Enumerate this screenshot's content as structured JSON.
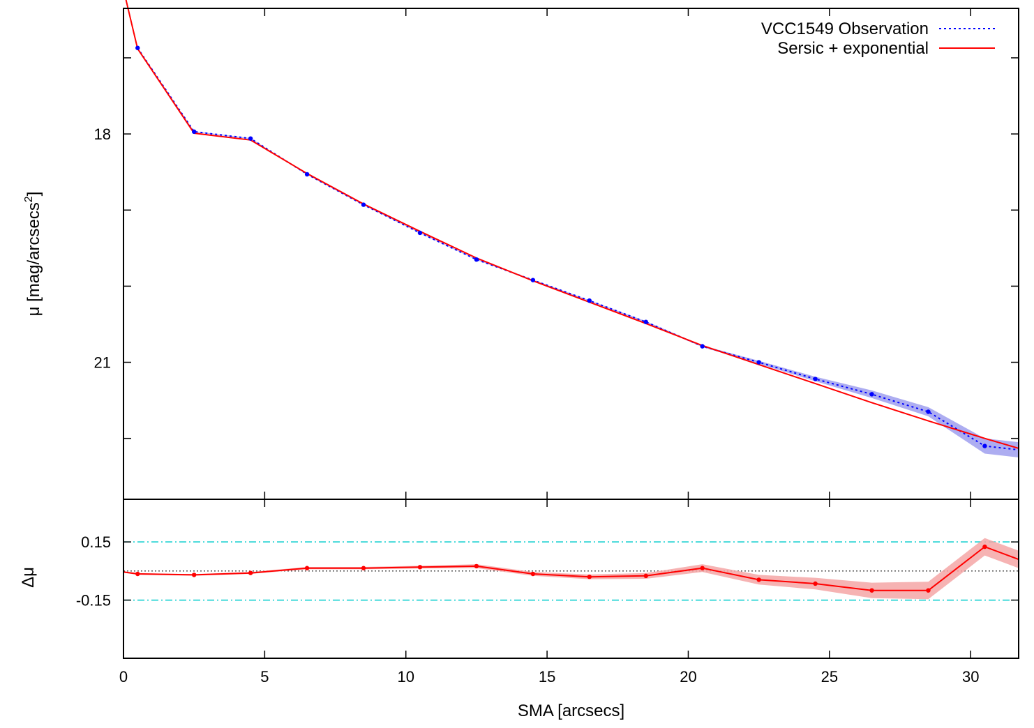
{
  "chart_data": [
    {
      "type": "line",
      "panel": "profile",
      "ylabel": "μ [mag/arcsecs",
      "ylabel_sup": "2",
      "xlim": [
        0,
        31.7
      ],
      "ylim": [
        16.35,
        22.8
      ],
      "y_inverted": true,
      "yticks": [
        18,
        21
      ],
      "yticks_labels": [
        "18",
        "21"
      ],
      "yticks_minor": [
        17,
        19,
        20,
        22
      ],
      "legend_position": "top-right",
      "series": [
        {
          "name": "VCC1549 Observation",
          "style": "dotted-with-points",
          "color": "#0000ff",
          "band_color": "#9999ee",
          "x": [
            0.5,
            2.5,
            4.5,
            6.5,
            8.5,
            10.5,
            12.5,
            14.5,
            16.5,
            18.5,
            20.5,
            22.5,
            24.5,
            26.5,
            28.5,
            30.5,
            31.7
          ],
          "values": [
            16.87,
            17.97,
            18.06,
            18.53,
            18.93,
            19.3,
            19.65,
            19.92,
            20.19,
            20.47,
            20.79,
            21.0,
            21.22,
            21.42,
            21.65,
            22.1,
            22.15
          ],
          "band_half_width": [
            0.005,
            0.005,
            0.005,
            0.005,
            0.005,
            0.005,
            0.005,
            0.005,
            0.005,
            0.01,
            0.01,
            0.02,
            0.03,
            0.05,
            0.06,
            0.1,
            0.1
          ]
        },
        {
          "name": "Sersic + exponential",
          "style": "solid",
          "color": "#ff0000",
          "x": [
            0.0,
            0.5,
            2.5,
            4.5,
            6.5,
            8.5,
            10.5,
            12.5,
            14.5,
            16.5,
            18.5,
            20.5,
            22.5,
            24.5,
            26.5,
            28.5,
            30.5,
            31.7
          ],
          "values": [
            16.1,
            16.88,
            17.99,
            18.08,
            18.52,
            18.92,
            19.28,
            19.63,
            19.93,
            20.21,
            20.49,
            20.78,
            21.03,
            21.28,
            21.53,
            21.77,
            22.0,
            22.13
          ]
        }
      ]
    },
    {
      "type": "line",
      "panel": "residuals",
      "xlabel": "SMA [arcsecs]",
      "ylabel": "Δμ",
      "xlim": [
        0,
        31.7
      ],
      "ylim": [
        -0.45,
        0.37
      ],
      "xticks": [
        0,
        5,
        10,
        15,
        20,
        25,
        30
      ],
      "xticks_labels": [
        "0",
        "5",
        "10",
        "15",
        "20",
        "25",
        "30"
      ],
      "yticks": [
        0.15,
        -0.15
      ],
      "yticks_labels": [
        "0.15",
        "-0.15"
      ],
      "reference_lines": [
        {
          "y": 0.15,
          "style": "dash-dot",
          "color": "#00cccc"
        },
        {
          "y": -0.15,
          "style": "dash-dot",
          "color": "#00cccc"
        },
        {
          "y": 0.0,
          "style": "dotted",
          "color": "#000000"
        }
      ],
      "series": [
        {
          "style": "solid-with-points",
          "color": "#ff0000",
          "band_color": "#f4a6a6",
          "x": [
            0.0,
            0.5,
            2.5,
            4.5,
            6.5,
            8.5,
            10.5,
            12.5,
            14.5,
            16.5,
            18.5,
            20.5,
            22.5,
            24.5,
            26.5,
            28.5,
            30.5,
            31.7
          ],
          "values": [
            -0.005,
            -0.015,
            -0.02,
            -0.01,
            0.015,
            0.015,
            0.02,
            0.025,
            -0.015,
            -0.03,
            -0.025,
            0.015,
            -0.045,
            -0.065,
            -0.1,
            -0.1,
            0.125,
            0.06
          ],
          "band_half_width": [
            0.004,
            0.004,
            0.004,
            0.005,
            0.006,
            0.006,
            0.007,
            0.01,
            0.01,
            0.012,
            0.015,
            0.02,
            0.025,
            0.03,
            0.04,
            0.045,
            0.045,
            0.045
          ]
        }
      ]
    }
  ]
}
